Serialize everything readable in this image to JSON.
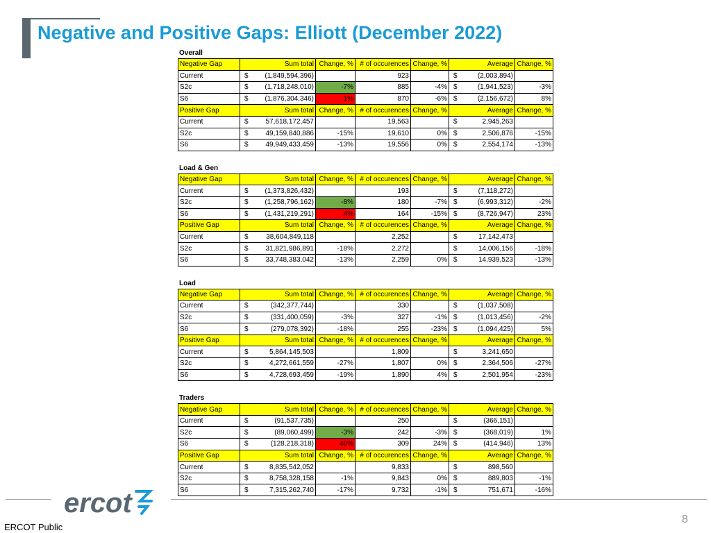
{
  "title": "Negative and Positive Gaps: Elliott (December 2022)",
  "headers": {
    "negative": "Negative Gap",
    "positive": "Positive Gap",
    "sum_total": "Sum total",
    "change": "Change, %",
    "occurences": "# of occurences",
    "average": "Average"
  },
  "sections": [
    {
      "name": "Overall",
      "negative_rows": [
        {
          "label": "Current",
          "dollar": "$",
          "sum": "(1,849,594,396)",
          "chg": "",
          "chg_color": "",
          "occ": "923",
          "chg2": "",
          "avg_dollar": "$",
          "avg": "(2,003,894)",
          "chg3": ""
        },
        {
          "label": "S2c",
          "dollar": "$",
          "sum": "(1,718,248,010)",
          "chg": "-7%",
          "chg_color": "green",
          "occ": "885",
          "chg2": "-4%",
          "avg_dollar": "$",
          "avg": "(1,941,523)",
          "chg3": "-3%"
        },
        {
          "label": "S6",
          "dollar": "$",
          "sum": "(1,876,304,346)",
          "chg": "1%",
          "chg_color": "red",
          "occ": "870",
          "chg2": "-6%",
          "avg_dollar": "$",
          "avg": "(2,156,672)",
          "chg3": "8%"
        }
      ],
      "positive_rows": [
        {
          "label": "Current",
          "dollar": "$",
          "sum": "57,618,172,457",
          "chg": "",
          "chg_color": "",
          "occ": "19,563",
          "chg2": "",
          "avg_dollar": "$",
          "avg": "2,945,263",
          "chg3": ""
        },
        {
          "label": "S2c",
          "dollar": "$",
          "sum": "49,159,840,886",
          "chg": "-15%",
          "chg_color": "",
          "occ": "19,610",
          "chg2": "0%",
          "avg_dollar": "$",
          "avg": "2,506,876",
          "chg3": "-15%"
        },
        {
          "label": "S6",
          "dollar": "$",
          "sum": "49,949,433,459",
          "chg": "-13%",
          "chg_color": "",
          "occ": "19,556",
          "chg2": "0%",
          "avg_dollar": "$",
          "avg": "2,554,174",
          "chg3": "-13%"
        }
      ]
    },
    {
      "name": "Load & Gen",
      "negative_rows": [
        {
          "label": "Current",
          "dollar": "$",
          "sum": "(1,373,826,432)",
          "chg": "",
          "chg_color": "",
          "occ": "193",
          "chg2": "",
          "avg_dollar": "$",
          "avg": "(7,118,272)",
          "chg3": ""
        },
        {
          "label": "S2c",
          "dollar": "$",
          "sum": "(1,258,796,162)",
          "chg": "-8%",
          "chg_color": "green",
          "occ": "180",
          "chg2": "-7%",
          "avg_dollar": "$",
          "avg": "(6,993,312)",
          "chg3": "-2%"
        },
        {
          "label": "S6",
          "dollar": "$",
          "sum": "(1,431,219,291)",
          "chg": "4%",
          "chg_color": "red",
          "occ": "164",
          "chg2": "-15%",
          "avg_dollar": "$",
          "avg": "(8,726,947)",
          "chg3": "23%"
        }
      ],
      "positive_rows": [
        {
          "label": "Current",
          "dollar": "$",
          "sum": "38,604,849,118",
          "chg": "",
          "chg_color": "",
          "occ": "2,252",
          "chg2": "",
          "avg_dollar": "$",
          "avg": "17,142,473",
          "chg3": ""
        },
        {
          "label": "S2c",
          "dollar": "$",
          "sum": "31,821,986,891",
          "chg": "-18%",
          "chg_color": "",
          "occ": "2,272",
          "chg2": "",
          "avg_dollar": "$",
          "avg": "14,006,156",
          "chg3": "-18%"
        },
        {
          "label": "S6",
          "dollar": "$",
          "sum": "33,748,383,042",
          "chg": "-13%",
          "chg_color": "",
          "occ": "2,259",
          "chg2": "0%",
          "avg_dollar": "$",
          "avg": "14,939,523",
          "chg3": "-13%"
        }
      ]
    },
    {
      "name": "Load",
      "negative_rows": [
        {
          "label": "Current",
          "dollar": "$",
          "sum": "(342,377,744)",
          "chg": "",
          "chg_color": "",
          "occ": "330",
          "chg2": "",
          "avg_dollar": "$",
          "avg": "(1,037,508)",
          "chg3": ""
        },
        {
          "label": "S2c",
          "dollar": "$",
          "sum": "(331,400,059)",
          "chg": "-3%",
          "chg_color": "",
          "occ": "327",
          "chg2": "-1%",
          "avg_dollar": "$",
          "avg": "(1,013,456)",
          "chg3": "-2%"
        },
        {
          "label": "S6",
          "dollar": "$",
          "sum": "(279,078,392)",
          "chg": "-18%",
          "chg_color": "",
          "occ": "255",
          "chg2": "-23%",
          "avg_dollar": "$",
          "avg": "(1,094,425)",
          "chg3": "5%"
        }
      ],
      "positive_rows": [
        {
          "label": "Current",
          "dollar": "$",
          "sum": "5,864,145,503",
          "chg": "",
          "chg_color": "",
          "occ": "1,809",
          "chg2": "",
          "avg_dollar": "$",
          "avg": "3,241,650",
          "chg3": ""
        },
        {
          "label": "S2c",
          "dollar": "$",
          "sum": "4,272,661,559",
          "chg": "-27%",
          "chg_color": "",
          "occ": "1,807",
          "chg2": "0%",
          "avg_dollar": "$",
          "avg": "2,364,506",
          "chg3": "-27%"
        },
        {
          "label": "S6",
          "dollar": "$",
          "sum": "4,728,693,459",
          "chg": "-19%",
          "chg_color": "",
          "occ": "1,890",
          "chg2": "4%",
          "avg_dollar": "$",
          "avg": "2,501,954",
          "chg3": "-23%"
        }
      ]
    },
    {
      "name": "Traders",
      "negative_rows": [
        {
          "label": "Current",
          "dollar": "$",
          "sum": "(91,537,735)",
          "chg": "",
          "chg_color": "",
          "occ": "250",
          "chg2": "",
          "avg_dollar": "$",
          "avg": "(366,151)",
          "chg3": ""
        },
        {
          "label": "S2c",
          "dollar": "$",
          "sum": "(89,060,499)",
          "chg": "-3%",
          "chg_color": "green",
          "occ": "242",
          "chg2": "-3%",
          "avg_dollar": "$",
          "avg": "(368,019)",
          "chg3": "1%"
        },
        {
          "label": "S6",
          "dollar": "$",
          "sum": "(128,218,318)",
          "chg": "40%",
          "chg_color": "red",
          "occ": "309",
          "chg2": "24%",
          "avg_dollar": "$",
          "avg": "(414,946)",
          "chg3": "13%"
        }
      ],
      "positive_rows": [
        {
          "label": "Current",
          "dollar": "$",
          "sum": "8,835,542,052",
          "chg": "",
          "chg_color": "",
          "occ": "9,833",
          "chg2": "",
          "avg_dollar": "$",
          "avg": "898,560",
          "chg3": ""
        },
        {
          "label": "S2c",
          "dollar": "$",
          "sum": "8,758,328,158",
          "chg": "-1%",
          "chg_color": "",
          "occ": "9,843",
          "chg2": "0%",
          "avg_dollar": "$",
          "avg": "889,803",
          "chg3": "-1%"
        },
        {
          "label": "S6",
          "dollar": "$",
          "sum": "7,315,262,740",
          "chg": "-17%",
          "chg_color": "",
          "occ": "9,732",
          "chg2": "-1%",
          "avg_dollar": "$",
          "avg": "751,671",
          "chg3": "-16%"
        }
      ]
    }
  ],
  "footer": {
    "logo": "ercot",
    "page_number": "8",
    "classification": "ERCOT Public"
  },
  "colors": {
    "title": "#1a9bd7",
    "header_fill": "#ffff00",
    "decrease_fill": "#70ad47",
    "increase_fill": "#ff0000",
    "logo": "#5b6770"
  }
}
